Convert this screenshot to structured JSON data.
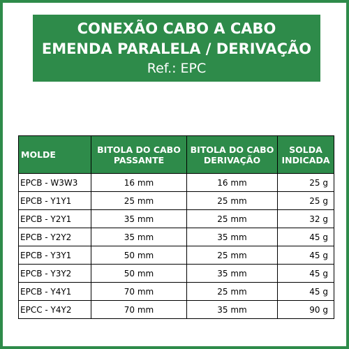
{
  "title": {
    "line1": "CONEXÃO CABO A CABO",
    "line2": "EMENDA PARALELA / DERIVAÇÃO",
    "ref": "Ref.: EPC"
  },
  "table": {
    "headers": {
      "molde": "MOLDE",
      "bitola_passante_1": "BITOLA DO CABO",
      "bitola_passante_2": "PASSANTE",
      "bitola_derivacao_1": "BITOLA DO CABO",
      "bitola_derivacao_2": "DERIVAÇÃO",
      "solda_1": "SOLDA",
      "solda_2": "INDICADA"
    },
    "rows": [
      {
        "molde": "EPCB - W3W3",
        "passante": "16 mm",
        "derivacao": "16 mm",
        "solda": "25 g"
      },
      {
        "molde": "EPCB - Y1Y1",
        "passante": "25 mm",
        "derivacao": "25 mm",
        "solda": "25 g"
      },
      {
        "molde": "EPCB - Y2Y1",
        "passante": "35 mm",
        "derivacao": "25 mm",
        "solda": "32 g"
      },
      {
        "molde": "EPCB - Y2Y2",
        "passante": "35 mm",
        "derivacao": "35 mm",
        "solda": "45 g"
      },
      {
        "molde": "EPCB - Y3Y1",
        "passante": "50 mm",
        "derivacao": "25 mm",
        "solda": "45 g"
      },
      {
        "molde": "EPCB - Y3Y2",
        "passante": "50 mm",
        "derivacao": "35 mm",
        "solda": "45 g"
      },
      {
        "molde": "EPCB - Y4Y1",
        "passante": "70 mm",
        "derivacao": "25 mm",
        "solda": "45 g"
      },
      {
        "molde": "EPCC - Y4Y2",
        "passante": "70 mm",
        "derivacao": "35 mm",
        "solda": "90 g"
      }
    ]
  },
  "colors": {
    "brand_green": "#2e8b4a",
    "header_text": "#ffffff"
  }
}
